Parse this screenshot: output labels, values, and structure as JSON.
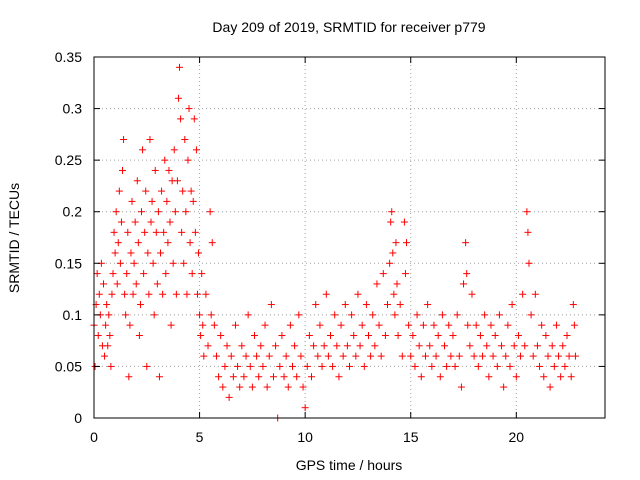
{
  "chart_data": {
    "type": "scatter",
    "title": "Day 209 of 2019, SRMTID for receiver p779",
    "xlabel": "GPS time / hours",
    "ylabel": "SRMTID / TECUs",
    "xlim": [
      0,
      24.2
    ],
    "ylim": [
      0,
      0.35
    ],
    "x_ticks": [
      0,
      5,
      10,
      15,
      20
    ],
    "x_tick_labels": [
      "0",
      "5",
      "10",
      "15",
      "20"
    ],
    "y_ticks": [
      0,
      0.05,
      0.1,
      0.15,
      0.2,
      0.25,
      0.3,
      0.35
    ],
    "y_tick_labels": [
      "0",
      "0.05",
      "0.1",
      "0.15",
      "0.2",
      "0.25",
      "0.3",
      "0.35"
    ],
    "grid": true,
    "marker": "plus",
    "series": [
      {
        "name": "SRMTID",
        "color": "#ff0000",
        "points": [
          [
            0.0,
            0.09
          ],
          [
            0.05,
            0.05
          ],
          [
            0.1,
            0.11
          ],
          [
            0.15,
            0.14
          ],
          [
            0.2,
            0.08
          ],
          [
            0.25,
            0.12
          ],
          [
            0.3,
            0.1
          ],
          [
            0.35,
            0.15
          ],
          [
            0.4,
            0.07
          ],
          [
            0.45,
            0.13
          ],
          [
            0.5,
            0.06
          ],
          [
            0.55,
            0.09
          ],
          [
            0.6,
            0.11
          ],
          [
            0.65,
            0.07
          ],
          [
            0.7,
            0.1
          ],
          [
            0.75,
            0.08
          ],
          [
            0.8,
            0.05
          ],
          [
            0.85,
            0.12
          ],
          [
            0.9,
            0.14
          ],
          [
            0.95,
            0.18
          ],
          [
            1.0,
            0.16
          ],
          [
            1.05,
            0.2
          ],
          [
            1.1,
            0.13
          ],
          [
            1.15,
            0.17
          ],
          [
            1.2,
            0.22
          ],
          [
            1.25,
            0.15
          ],
          [
            1.3,
            0.19
          ],
          [
            1.35,
            0.24
          ],
          [
            1.4,
            0.27
          ],
          [
            1.45,
            0.12
          ],
          [
            1.5,
            0.1
          ],
          [
            1.55,
            0.14
          ],
          [
            1.6,
            0.18
          ],
          [
            1.65,
            0.04
          ],
          [
            1.7,
            0.09
          ],
          [
            1.75,
            0.16
          ],
          [
            1.8,
            0.21
          ],
          [
            1.85,
            0.12
          ],
          [
            1.9,
            0.15
          ],
          [
            1.95,
            0.19
          ],
          [
            2.0,
            0.13
          ],
          [
            2.05,
            0.23
          ],
          [
            2.1,
            0.17
          ],
          [
            2.15,
            0.08
          ],
          [
            2.2,
            0.11
          ],
          [
            2.25,
            0.2
          ],
          [
            2.3,
            0.26
          ],
          [
            2.35,
            0.14
          ],
          [
            2.4,
            0.18
          ],
          [
            2.45,
            0.22
          ],
          [
            2.5,
            0.05
          ],
          [
            2.55,
            0.16
          ],
          [
            2.6,
            0.12
          ],
          [
            2.65,
            0.27
          ],
          [
            2.7,
            0.19
          ],
          [
            2.75,
            0.21
          ],
          [
            2.8,
            0.15
          ],
          [
            2.85,
            0.1
          ],
          [
            2.9,
            0.24
          ],
          [
            2.95,
            0.18
          ],
          [
            3.0,
            0.13
          ],
          [
            3.05,
            0.2
          ],
          [
            3.1,
            0.04
          ],
          [
            3.15,
            0.16
          ],
          [
            3.2,
            0.22
          ],
          [
            3.25,
            0.12
          ],
          [
            3.3,
            0.18
          ],
          [
            3.35,
            0.25
          ],
          [
            3.4,
            0.14
          ],
          [
            3.45,
            0.21
          ],
          [
            3.5,
            0.17
          ],
          [
            3.55,
            0.24
          ],
          [
            3.6,
            0.19
          ],
          [
            3.65,
            0.09
          ],
          [
            3.7,
            0.23
          ],
          [
            3.75,
            0.15
          ],
          [
            3.8,
            0.26
          ],
          [
            3.85,
            0.2
          ],
          [
            3.9,
            0.12
          ],
          [
            3.95,
            0.23
          ],
          [
            4.0,
            0.31
          ],
          [
            4.05,
            0.34
          ],
          [
            4.1,
            0.29
          ],
          [
            4.15,
            0.18
          ],
          [
            4.2,
            0.22
          ],
          [
            4.25,
            0.15
          ],
          [
            4.3,
            0.27
          ],
          [
            4.35,
            0.2
          ],
          [
            4.4,
            0.12
          ],
          [
            4.45,
            0.25
          ],
          [
            4.5,
            0.3
          ],
          [
            4.55,
            0.17
          ],
          [
            4.6,
            0.22
          ],
          [
            4.65,
            0.14
          ],
          [
            4.7,
            0.21
          ],
          [
            4.75,
            0.29
          ],
          [
            4.8,
            0.18
          ],
          [
            4.85,
            0.26
          ],
          [
            4.9,
            0.12
          ],
          [
            4.95,
            0.16
          ],
          [
            5.0,
            0.1
          ],
          [
            5.05,
            0.08
          ],
          [
            5.1,
            0.14
          ],
          [
            5.15,
            0.09
          ],
          [
            5.2,
            0.06
          ],
          [
            5.3,
            0.12
          ],
          [
            5.4,
            0.07
          ],
          [
            5.5,
            0.2
          ],
          [
            5.55,
            0.1
          ],
          [
            5.6,
            0.17
          ],
          [
            5.7,
            0.09
          ],
          [
            5.8,
            0.06
          ],
          [
            5.9,
            0.04
          ],
          [
            6.0,
            0.08
          ],
          [
            6.1,
            0.03
          ],
          [
            6.2,
            0.05
          ],
          [
            6.3,
            0.07
          ],
          [
            6.4,
            0.02
          ],
          [
            6.5,
            0.06
          ],
          [
            6.6,
            0.04
          ],
          [
            6.7,
            0.09
          ],
          [
            6.8,
            0.05
          ],
          [
            6.9,
            0.03
          ],
          [
            7.0,
            0.07
          ],
          [
            7.1,
            0.04
          ],
          [
            7.2,
            0.06
          ],
          [
            7.3,
            0.1
          ],
          [
            7.4,
            0.05
          ],
          [
            7.5,
            0.03
          ],
          [
            7.6,
            0.08
          ],
          [
            7.7,
            0.06
          ],
          [
            7.8,
            0.04
          ],
          [
            7.9,
            0.07
          ],
          [
            8.0,
            0.05
          ],
          [
            8.1,
            0.09
          ],
          [
            8.2,
            0.03
          ],
          [
            8.3,
            0.06
          ],
          [
            8.4,
            0.11
          ],
          [
            8.5,
            0.04
          ],
          [
            8.6,
            0.07
          ],
          [
            8.7,
            0.0
          ],
          [
            8.8,
            0.05
          ],
          [
            8.9,
            0.08
          ],
          [
            9.0,
            0.04
          ],
          [
            9.1,
            0.06
          ],
          [
            9.2,
            0.03
          ],
          [
            9.3,
            0.09
          ],
          [
            9.4,
            0.05
          ],
          [
            9.5,
            0.07
          ],
          [
            9.6,
            0.04
          ],
          [
            9.7,
            0.1
          ],
          [
            9.8,
            0.06
          ],
          [
            9.9,
            0.03
          ],
          [
            10.0,
            0.01
          ],
          [
            10.1,
            0.05
          ],
          [
            10.2,
            0.08
          ],
          [
            10.3,
            0.04
          ],
          [
            10.4,
            0.07
          ],
          [
            10.5,
            0.11
          ],
          [
            10.6,
            0.06
          ],
          [
            10.7,
            0.09
          ],
          [
            10.8,
            0.05
          ],
          [
            10.9,
            0.07
          ],
          [
            11.0,
            0.12
          ],
          [
            11.1,
            0.06
          ],
          [
            11.2,
            0.08
          ],
          [
            11.3,
            0.05
          ],
          [
            11.4,
            0.1
          ],
          [
            11.5,
            0.07
          ],
          [
            11.6,
            0.04
          ],
          [
            11.7,
            0.09
          ],
          [
            11.8,
            0.06
          ],
          [
            11.9,
            0.11
          ],
          [
            12.0,
            0.07
          ],
          [
            12.1,
            0.05
          ],
          [
            12.2,
            0.1
          ],
          [
            12.3,
            0.08
          ],
          [
            12.4,
            0.06
          ],
          [
            12.5,
            0.12
          ],
          [
            12.6,
            0.07
          ],
          [
            12.7,
            0.09
          ],
          [
            12.8,
            0.05
          ],
          [
            12.9,
            0.11
          ],
          [
            13.0,
            0.08
          ],
          [
            13.1,
            0.06
          ],
          [
            13.2,
            0.1
          ],
          [
            13.3,
            0.07
          ],
          [
            13.4,
            0.13
          ],
          [
            13.5,
            0.09
          ],
          [
            13.6,
            0.06
          ],
          [
            13.7,
            0.14
          ],
          [
            13.8,
            0.08
          ],
          [
            13.9,
            0.11
          ],
          [
            14.0,
            0.15
          ],
          [
            14.05,
            0.19
          ],
          [
            14.1,
            0.2
          ],
          [
            14.15,
            0.16
          ],
          [
            14.2,
            0.12
          ],
          [
            14.25,
            0.1
          ],
          [
            14.3,
            0.17
          ],
          [
            14.35,
            0.13
          ],
          [
            14.4,
            0.08
          ],
          [
            14.5,
            0.11
          ],
          [
            14.6,
            0.06
          ],
          [
            14.7,
            0.19
          ],
          [
            14.75,
            0.14
          ],
          [
            14.8,
            0.17
          ],
          [
            14.9,
            0.09
          ],
          [
            15.0,
            0.06
          ],
          [
            15.1,
            0.08
          ],
          [
            15.2,
            0.05
          ],
          [
            15.3,
            0.1
          ],
          [
            15.4,
            0.07
          ],
          [
            15.5,
            0.04
          ],
          [
            15.6,
            0.09
          ],
          [
            15.7,
            0.06
          ],
          [
            15.8,
            0.11
          ],
          [
            15.9,
            0.07
          ],
          [
            16.0,
            0.05
          ],
          [
            16.1,
            0.09
          ],
          [
            16.2,
            0.06
          ],
          [
            16.3,
            0.08
          ],
          [
            16.4,
            0.04
          ],
          [
            16.5,
            0.1
          ],
          [
            16.6,
            0.07
          ],
          [
            16.7,
            0.05
          ],
          [
            16.8,
            0.09
          ],
          [
            16.9,
            0.06
          ],
          [
            17.0,
            0.08
          ],
          [
            17.1,
            0.05
          ],
          [
            17.2,
            0.1
          ],
          [
            17.3,
            0.06
          ],
          [
            17.4,
            0.03
          ],
          [
            17.5,
            0.13
          ],
          [
            17.6,
            0.17
          ],
          [
            17.65,
            0.14
          ],
          [
            17.7,
            0.09
          ],
          [
            17.8,
            0.07
          ],
          [
            17.9,
            0.12
          ],
          [
            18.0,
            0.06
          ],
          [
            18.1,
            0.09
          ],
          [
            18.2,
            0.05
          ],
          [
            18.3,
            0.08
          ],
          [
            18.4,
            0.06
          ],
          [
            18.5,
            0.1
          ],
          [
            18.6,
            0.07
          ],
          [
            18.7,
            0.04
          ],
          [
            18.8,
            0.09
          ],
          [
            18.9,
            0.06
          ],
          [
            19.0,
            0.08
          ],
          [
            19.1,
            0.05
          ],
          [
            19.2,
            0.1
          ],
          [
            19.3,
            0.07
          ],
          [
            19.4,
            0.03
          ],
          [
            19.5,
            0.06
          ],
          [
            19.6,
            0.09
          ],
          [
            19.7,
            0.05
          ],
          [
            19.8,
            0.11
          ],
          [
            19.9,
            0.07
          ],
          [
            20.0,
            0.04
          ],
          [
            20.1,
            0.08
          ],
          [
            20.2,
            0.06
          ],
          [
            20.3,
            0.12
          ],
          [
            20.4,
            0.07
          ],
          [
            20.5,
            0.2
          ],
          [
            20.55,
            0.18
          ],
          [
            20.6,
            0.15
          ],
          [
            20.7,
            0.1
          ],
          [
            20.8,
            0.06
          ],
          [
            20.9,
            0.12
          ],
          [
            21.0,
            0.07
          ],
          [
            21.1,
            0.05
          ],
          [
            21.2,
            0.09
          ],
          [
            21.3,
            0.04
          ],
          [
            21.4,
            0.08
          ],
          [
            21.5,
            0.06
          ],
          [
            21.6,
            0.03
          ],
          [
            21.7,
            0.07
          ],
          [
            21.8,
            0.05
          ],
          [
            21.9,
            0.09
          ],
          [
            22.0,
            0.06
          ],
          [
            22.1,
            0.04
          ],
          [
            22.2,
            0.07
          ],
          [
            22.3,
            0.05
          ],
          [
            22.4,
            0.08
          ],
          [
            22.5,
            0.06
          ],
          [
            22.6,
            0.04
          ],
          [
            22.7,
            0.11
          ],
          [
            22.75,
            0.09
          ],
          [
            22.8,
            0.06
          ]
        ]
      }
    ]
  }
}
